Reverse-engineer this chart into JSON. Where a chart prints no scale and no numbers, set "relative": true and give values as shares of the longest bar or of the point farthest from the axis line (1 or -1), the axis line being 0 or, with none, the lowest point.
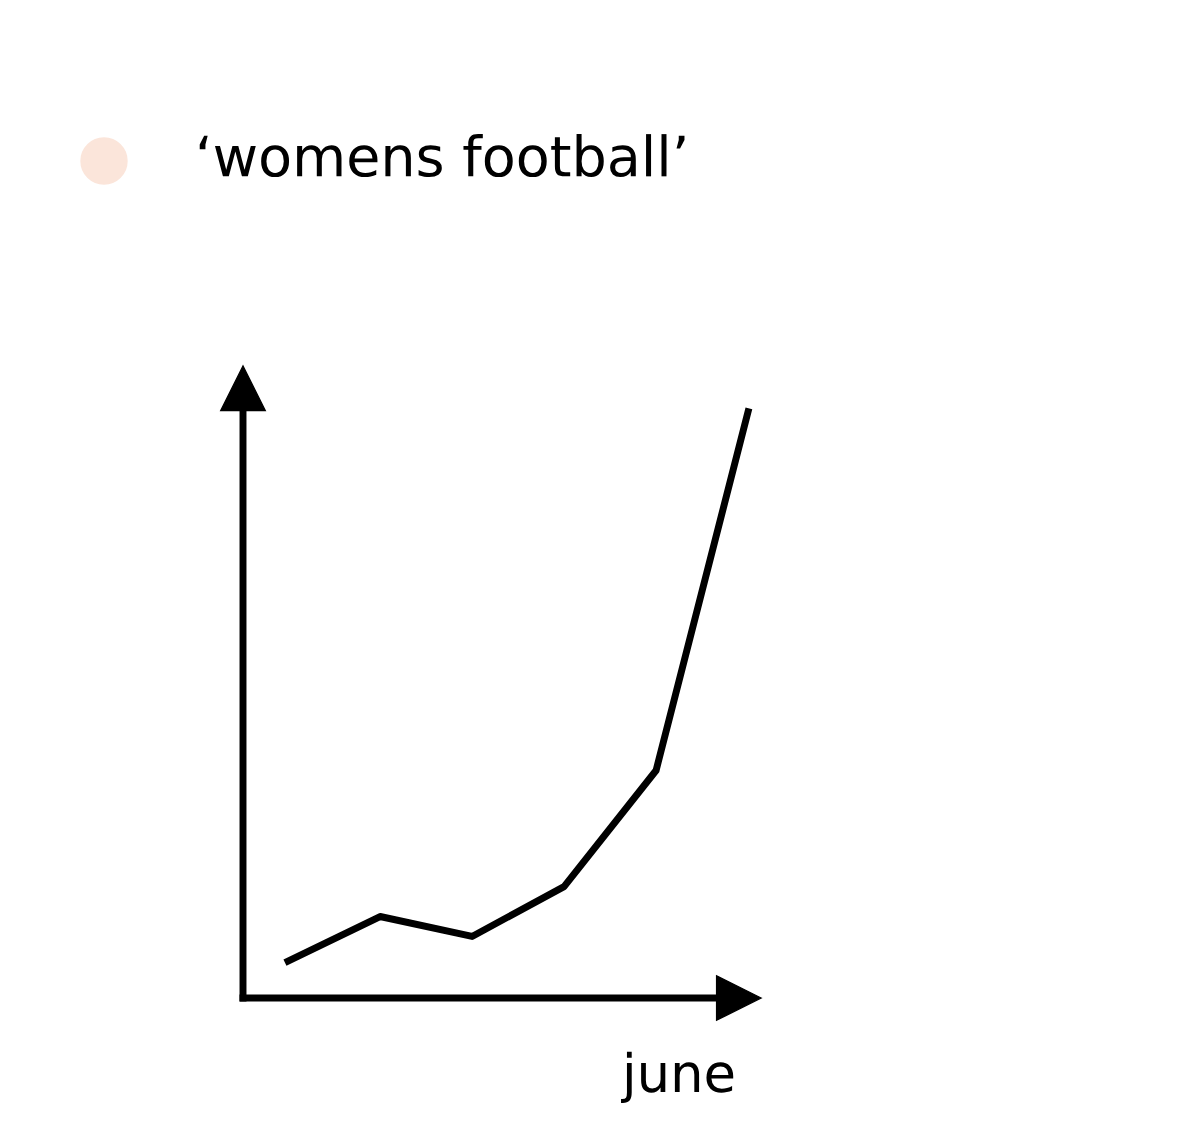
{
  "chart_data": {
    "type": "line",
    "title": "‘womens football’",
    "relative": true,
    "xlabel": "june",
    "categories": [
      null,
      null,
      null,
      null,
      null,
      null
    ],
    "series": [
      {
        "color": "#000000",
        "values": [
          0.063,
          0.139,
          0.105,
          0.19,
          0.388,
          1.0
        ]
      }
    ],
    "grid": false,
    "legend": false,
    "marker": "none",
    "line_style": "solid"
  }
}
